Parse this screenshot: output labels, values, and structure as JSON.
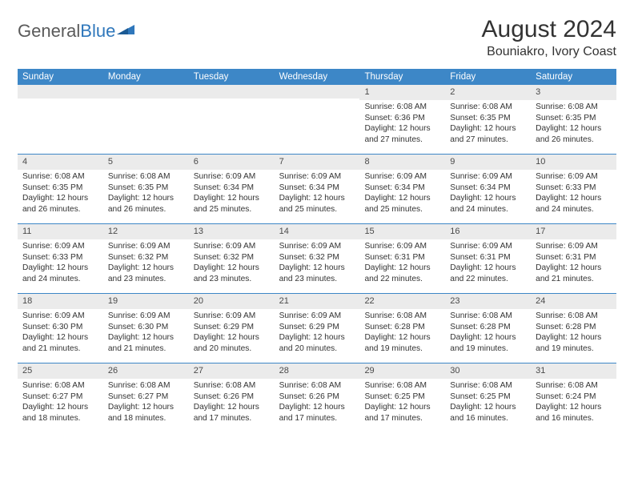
{
  "logo": {
    "text_gray": "General",
    "text_blue": "Blue"
  },
  "title": "August 2024",
  "location": "Bouniakro, Ivory Coast",
  "colors": {
    "header_bg": "#3d87c7",
    "header_text": "#ffffff",
    "daynum_bg": "#ebebeb",
    "week_border": "#3d87c7",
    "body_text": "#333333",
    "logo_gray": "#5a5a5a",
    "logo_blue": "#2f77bb"
  },
  "day_labels": [
    "Sunday",
    "Monday",
    "Tuesday",
    "Wednesday",
    "Thursday",
    "Friday",
    "Saturday"
  ],
  "weeks": [
    [
      null,
      null,
      null,
      null,
      {
        "n": "1",
        "sr": "Sunrise: 6:08 AM",
        "ss": "Sunset: 6:36 PM",
        "dl1": "Daylight: 12 hours",
        "dl2": "and 27 minutes."
      },
      {
        "n": "2",
        "sr": "Sunrise: 6:08 AM",
        "ss": "Sunset: 6:35 PM",
        "dl1": "Daylight: 12 hours",
        "dl2": "and 27 minutes."
      },
      {
        "n": "3",
        "sr": "Sunrise: 6:08 AM",
        "ss": "Sunset: 6:35 PM",
        "dl1": "Daylight: 12 hours",
        "dl2": "and 26 minutes."
      }
    ],
    [
      {
        "n": "4",
        "sr": "Sunrise: 6:08 AM",
        "ss": "Sunset: 6:35 PM",
        "dl1": "Daylight: 12 hours",
        "dl2": "and 26 minutes."
      },
      {
        "n": "5",
        "sr": "Sunrise: 6:08 AM",
        "ss": "Sunset: 6:35 PM",
        "dl1": "Daylight: 12 hours",
        "dl2": "and 26 minutes."
      },
      {
        "n": "6",
        "sr": "Sunrise: 6:09 AM",
        "ss": "Sunset: 6:34 PM",
        "dl1": "Daylight: 12 hours",
        "dl2": "and 25 minutes."
      },
      {
        "n": "7",
        "sr": "Sunrise: 6:09 AM",
        "ss": "Sunset: 6:34 PM",
        "dl1": "Daylight: 12 hours",
        "dl2": "and 25 minutes."
      },
      {
        "n": "8",
        "sr": "Sunrise: 6:09 AM",
        "ss": "Sunset: 6:34 PM",
        "dl1": "Daylight: 12 hours",
        "dl2": "and 25 minutes."
      },
      {
        "n": "9",
        "sr": "Sunrise: 6:09 AM",
        "ss": "Sunset: 6:34 PM",
        "dl1": "Daylight: 12 hours",
        "dl2": "and 24 minutes."
      },
      {
        "n": "10",
        "sr": "Sunrise: 6:09 AM",
        "ss": "Sunset: 6:33 PM",
        "dl1": "Daylight: 12 hours",
        "dl2": "and 24 minutes."
      }
    ],
    [
      {
        "n": "11",
        "sr": "Sunrise: 6:09 AM",
        "ss": "Sunset: 6:33 PM",
        "dl1": "Daylight: 12 hours",
        "dl2": "and 24 minutes."
      },
      {
        "n": "12",
        "sr": "Sunrise: 6:09 AM",
        "ss": "Sunset: 6:32 PM",
        "dl1": "Daylight: 12 hours",
        "dl2": "and 23 minutes."
      },
      {
        "n": "13",
        "sr": "Sunrise: 6:09 AM",
        "ss": "Sunset: 6:32 PM",
        "dl1": "Daylight: 12 hours",
        "dl2": "and 23 minutes."
      },
      {
        "n": "14",
        "sr": "Sunrise: 6:09 AM",
        "ss": "Sunset: 6:32 PM",
        "dl1": "Daylight: 12 hours",
        "dl2": "and 23 minutes."
      },
      {
        "n": "15",
        "sr": "Sunrise: 6:09 AM",
        "ss": "Sunset: 6:31 PM",
        "dl1": "Daylight: 12 hours",
        "dl2": "and 22 minutes."
      },
      {
        "n": "16",
        "sr": "Sunrise: 6:09 AM",
        "ss": "Sunset: 6:31 PM",
        "dl1": "Daylight: 12 hours",
        "dl2": "and 22 minutes."
      },
      {
        "n": "17",
        "sr": "Sunrise: 6:09 AM",
        "ss": "Sunset: 6:31 PM",
        "dl1": "Daylight: 12 hours",
        "dl2": "and 21 minutes."
      }
    ],
    [
      {
        "n": "18",
        "sr": "Sunrise: 6:09 AM",
        "ss": "Sunset: 6:30 PM",
        "dl1": "Daylight: 12 hours",
        "dl2": "and 21 minutes."
      },
      {
        "n": "19",
        "sr": "Sunrise: 6:09 AM",
        "ss": "Sunset: 6:30 PM",
        "dl1": "Daylight: 12 hours",
        "dl2": "and 21 minutes."
      },
      {
        "n": "20",
        "sr": "Sunrise: 6:09 AM",
        "ss": "Sunset: 6:29 PM",
        "dl1": "Daylight: 12 hours",
        "dl2": "and 20 minutes."
      },
      {
        "n": "21",
        "sr": "Sunrise: 6:09 AM",
        "ss": "Sunset: 6:29 PM",
        "dl1": "Daylight: 12 hours",
        "dl2": "and 20 minutes."
      },
      {
        "n": "22",
        "sr": "Sunrise: 6:08 AM",
        "ss": "Sunset: 6:28 PM",
        "dl1": "Daylight: 12 hours",
        "dl2": "and 19 minutes."
      },
      {
        "n": "23",
        "sr": "Sunrise: 6:08 AM",
        "ss": "Sunset: 6:28 PM",
        "dl1": "Daylight: 12 hours",
        "dl2": "and 19 minutes."
      },
      {
        "n": "24",
        "sr": "Sunrise: 6:08 AM",
        "ss": "Sunset: 6:28 PM",
        "dl1": "Daylight: 12 hours",
        "dl2": "and 19 minutes."
      }
    ],
    [
      {
        "n": "25",
        "sr": "Sunrise: 6:08 AM",
        "ss": "Sunset: 6:27 PM",
        "dl1": "Daylight: 12 hours",
        "dl2": "and 18 minutes."
      },
      {
        "n": "26",
        "sr": "Sunrise: 6:08 AM",
        "ss": "Sunset: 6:27 PM",
        "dl1": "Daylight: 12 hours",
        "dl2": "and 18 minutes."
      },
      {
        "n": "27",
        "sr": "Sunrise: 6:08 AM",
        "ss": "Sunset: 6:26 PM",
        "dl1": "Daylight: 12 hours",
        "dl2": "and 17 minutes."
      },
      {
        "n": "28",
        "sr": "Sunrise: 6:08 AM",
        "ss": "Sunset: 6:26 PM",
        "dl1": "Daylight: 12 hours",
        "dl2": "and 17 minutes."
      },
      {
        "n": "29",
        "sr": "Sunrise: 6:08 AM",
        "ss": "Sunset: 6:25 PM",
        "dl1": "Daylight: 12 hours",
        "dl2": "and 17 minutes."
      },
      {
        "n": "30",
        "sr": "Sunrise: 6:08 AM",
        "ss": "Sunset: 6:25 PM",
        "dl1": "Daylight: 12 hours",
        "dl2": "and 16 minutes."
      },
      {
        "n": "31",
        "sr": "Sunrise: 6:08 AM",
        "ss": "Sunset: 6:24 PM",
        "dl1": "Daylight: 12 hours",
        "dl2": "and 16 minutes."
      }
    ]
  ]
}
